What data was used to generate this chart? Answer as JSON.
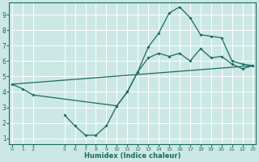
{
  "xlabel": "Humidex (Indice chaleur)",
  "bg_color": "#cce8e5",
  "grid_color": "#ffffff",
  "line_color": "#1a6b5e",
  "series1_x": [
    0,
    1,
    2,
    10,
    11,
    12,
    13,
    14,
    15,
    16,
    17,
    18,
    19,
    20,
    21,
    22,
    23
  ],
  "series1_y": [
    4.5,
    4.2,
    3.8,
    3.1,
    4.0,
    5.3,
    6.9,
    7.8,
    9.1,
    9.5,
    8.8,
    7.7,
    7.6,
    7.5,
    6.0,
    5.8,
    5.7
  ],
  "series2_x": [
    5,
    6,
    7,
    8,
    9,
    10,
    11,
    12,
    13,
    14,
    15,
    16,
    17,
    18,
    19,
    20,
    21,
    22,
    23
  ],
  "series2_y": [
    2.5,
    1.8,
    1.2,
    1.2,
    1.8,
    3.1,
    4.0,
    5.3,
    6.2,
    6.5,
    6.3,
    6.5,
    6.0,
    6.8,
    6.2,
    6.3,
    5.8,
    5.5,
    5.7
  ],
  "series3_x": [
    0,
    23
  ],
  "series3_y": [
    4.5,
    5.7
  ],
  "xticks": [
    0,
    1,
    2,
    5,
    6,
    7,
    8,
    9,
    10,
    11,
    12,
    13,
    14,
    15,
    16,
    17,
    18,
    19,
    20,
    21,
    22,
    23
  ],
  "xtick_labels": [
    "0",
    "1",
    "2",
    "5",
    "6",
    "7",
    "8",
    "9",
    "10",
    "11",
    "12",
    "13",
    "14",
    "15",
    "16",
    "17",
    "18",
    "19",
    "20",
    "21",
    "22",
    "23"
  ],
  "yticks": [
    1,
    2,
    3,
    4,
    5,
    6,
    7,
    8,
    9
  ],
  "xlim": [
    -0.3,
    23.3
  ],
  "ylim": [
    0.6,
    9.8
  ]
}
